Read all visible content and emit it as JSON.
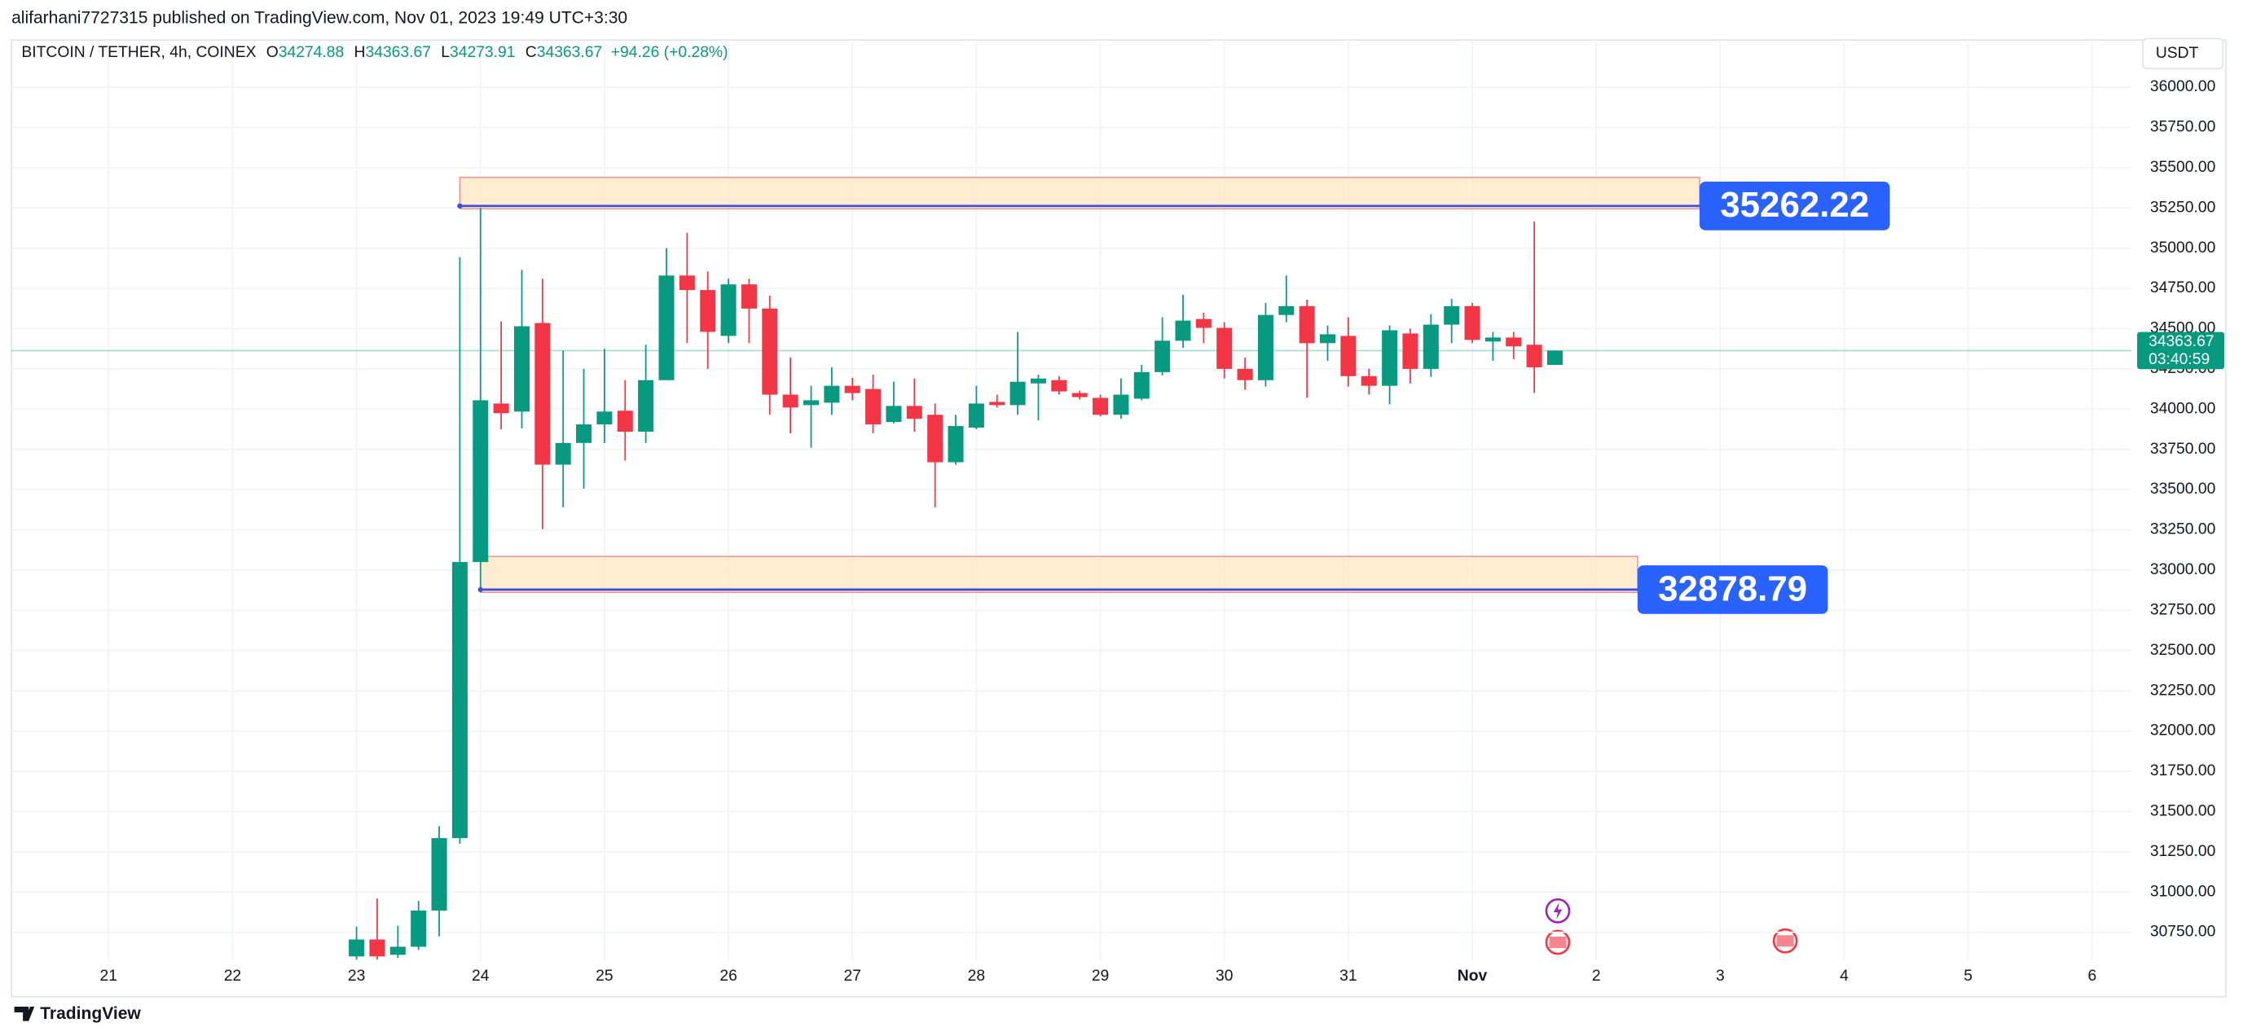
{
  "published": "alifarhani7727315 published on TradingView.com, Nov 01, 2023 19:49 UTC+3:30",
  "brand": "TradingView",
  "currency": "USDT",
  "countdown": "03:40:59",
  "chart_data": {
    "type": "candlestick",
    "title": "BITCOIN / TETHER, 4h, COINEX",
    "ohlc_letters": [
      "O",
      "H",
      "L",
      "C"
    ],
    "change": "+94.26 (+0.28%)",
    "up_color": "#089981",
    "down_color": "#f23645",
    "grid": true,
    "x": [
      0,
      1,
      2,
      3,
      4,
      5,
      6,
      7,
      8,
      9,
      10,
      11,
      12,
      13,
      14,
      15,
      16,
      17,
      18,
      19,
      20,
      21,
      22,
      23,
      24,
      25,
      26,
      27,
      28,
      29,
      30,
      31,
      32,
      33,
      34,
      35,
      36,
      37,
      38,
      39,
      40,
      41,
      42,
      43,
      44,
      45,
      46,
      47,
      48,
      49,
      50,
      51,
      52,
      53,
      54,
      55,
      56,
      57,
      58
    ],
    "open": [
      30600,
      30705,
      30610,
      30660,
      30885,
      31335,
      33050,
      34035,
      33985,
      34535,
      33655,
      33790,
      33905,
      33990,
      33860,
      34180,
      34830,
      34740,
      34455,
      34775,
      34625,
      34090,
      34025,
      34040,
      34145,
      34125,
      33920,
      34020,
      33965,
      33670,
      33885,
      34045,
      34025,
      34160,
      34180,
      34100,
      34070,
      33965,
      34065,
      34230,
      34425,
      34560,
      34505,
      34250,
      34180,
      34585,
      34640,
      34410,
      34455,
      34205,
      34145,
      34470,
      34250,
      34525,
      34640,
      34420,
      34445,
      34400,
      34274.88
    ],
    "high": [
      30785,
      30960,
      30790,
      30945,
      31410,
      34945,
      35250,
      34545,
      34865,
      34810,
      34365,
      34250,
      34375,
      34180,
      34400,
      35000,
      35095,
      34855,
      34810,
      34810,
      34705,
      34320,
      34145,
      34260,
      34195,
      34215,
      34170,
      34190,
      34035,
      33965,
      34145,
      34090,
      34480,
      34215,
      34205,
      34115,
      34090,
      34190,
      34275,
      34570,
      34710,
      34600,
      34540,
      34320,
      34660,
      34830,
      34680,
      34520,
      34570,
      34250,
      34520,
      34500,
      34590,
      34685,
      34660,
      34480,
      34480,
      35165,
      34363.67
    ],
    "low": [
      30580,
      30580,
      30590,
      30640,
      30725,
      31300,
      32880,
      33875,
      33880,
      33255,
      33390,
      33505,
      33790,
      33680,
      33790,
      34230,
      34410,
      34250,
      34410,
      34410,
      33965,
      33850,
      33760,
      33965,
      34055,
      33850,
      33910,
      33860,
      33390,
      33655,
      33875,
      34010,
      33965,
      33930,
      34090,
      34060,
      33955,
      33940,
      34055,
      34210,
      34380,
      34410,
      34190,
      34120,
      34140,
      34540,
      34070,
      34300,
      34140,
      34090,
      34030,
      34160,
      34200,
      34410,
      34410,
      34300,
      34310,
      34100,
      34273.91
    ],
    "close": [
      30705,
      30600,
      30660,
      30885,
      31335,
      33050,
      34055,
      33975,
      34515,
      33655,
      33790,
      33905,
      33985,
      33860,
      34180,
      34830,
      34740,
      34480,
      34775,
      34625,
      34090,
      34010,
      34055,
      34145,
      34100,
      33905,
      34020,
      33940,
      33670,
      33895,
      34035,
      34025,
      34170,
      34190,
      34110,
      34075,
      33965,
      34090,
      34230,
      34425,
      34550,
      34505,
      34250,
      34180,
      34585,
      34640,
      34410,
      34465,
      34205,
      34145,
      34490,
      34250,
      34525,
      34640,
      34430,
      34445,
      34390,
      34260,
      34363.67
    ],
    "xlim": [
      -16.7,
      85.9
    ],
    "ylim": [
      30572,
      36293
    ],
    "xticks": [
      {
        "value": -12,
        "label": "21"
      },
      {
        "value": -6,
        "label": "22"
      },
      {
        "value": 0,
        "label": "23"
      },
      {
        "value": 6,
        "label": "24"
      },
      {
        "value": 12,
        "label": "25"
      },
      {
        "value": 18,
        "label": "26"
      },
      {
        "value": 24,
        "label": "27"
      },
      {
        "value": 30,
        "label": "28"
      },
      {
        "value": 36,
        "label": "29"
      },
      {
        "value": 42,
        "label": "30"
      },
      {
        "value": 48,
        "label": "31"
      },
      {
        "value": 54,
        "label": "Nov"
      },
      {
        "value": 60,
        "label": "2"
      },
      {
        "value": 66,
        "label": "3"
      },
      {
        "value": 72,
        "label": "4"
      },
      {
        "value": 78,
        "label": "5"
      },
      {
        "value": 84,
        "label": "6"
      }
    ],
    "yticks": [
      {
        "value": 30750,
        "label": "30750.00"
      },
      {
        "value": 31000,
        "label": "31000.00"
      },
      {
        "value": 31250,
        "label": "31250.00"
      },
      {
        "value": 31500,
        "label": "31500.00"
      },
      {
        "value": 31750,
        "label": "31750.00"
      },
      {
        "value": 32000,
        "label": "32000.00"
      },
      {
        "value": 32250,
        "label": "32250.00"
      },
      {
        "value": 32500,
        "label": "32500.00"
      },
      {
        "value": 32750,
        "label": "32750.00"
      },
      {
        "value": 33000,
        "label": "33000.00"
      },
      {
        "value": 33250,
        "label": "33250.00"
      },
      {
        "value": 33500,
        "label": "33500.00"
      },
      {
        "value": 33750,
        "label": "33750.00"
      },
      {
        "value": 34000,
        "label": "34000.00"
      },
      {
        "value": 34250,
        "label": "34250.00"
      },
      {
        "value": 34500,
        "label": "34500.00"
      },
      {
        "value": 34750,
        "label": "34750.00"
      },
      {
        "value": 35000,
        "label": "35000.00"
      },
      {
        "value": 35250,
        "label": "35250.00"
      },
      {
        "value": 35500,
        "label": "35500.00"
      },
      {
        "value": 35750,
        "label": "35750.00"
      },
      {
        "value": 36000,
        "label": "36000.00"
      }
    ],
    "zones": [
      {
        "price": 35262.22,
        "top": 35440,
        "x": [
          5,
          65
        ]
      },
      {
        "price": 32878.79,
        "top": 33085,
        "x": [
          6,
          62
        ]
      }
    ]
  }
}
